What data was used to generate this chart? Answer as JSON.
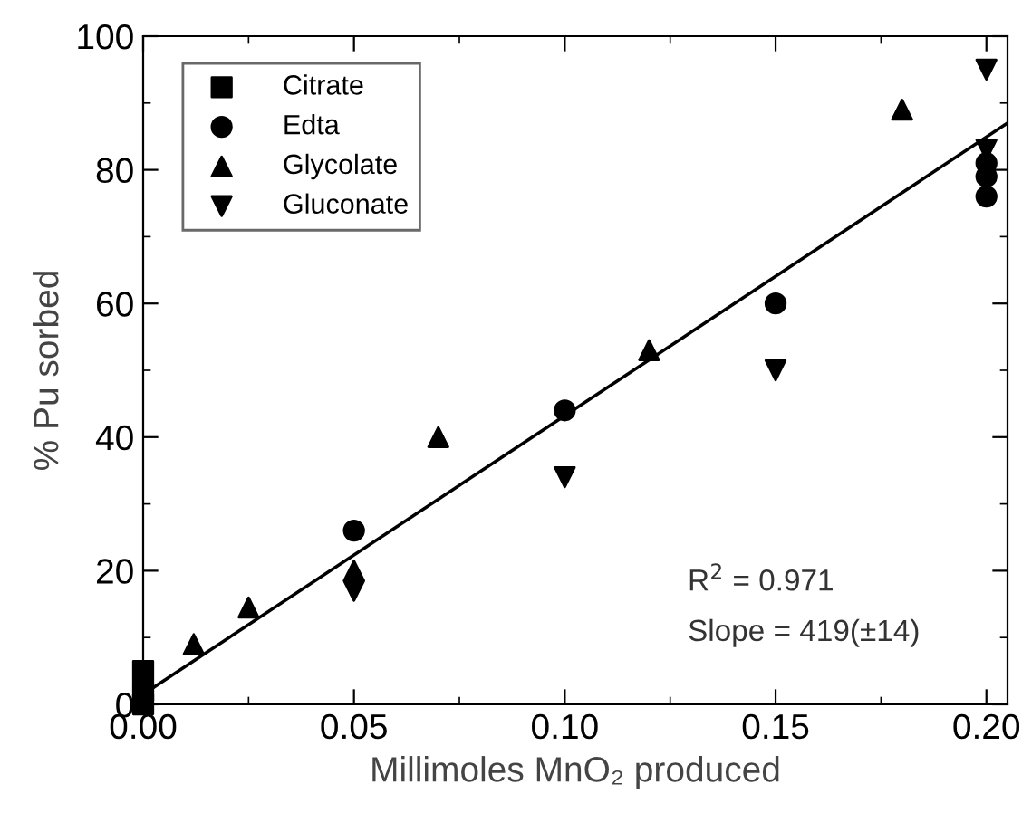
{
  "chart_data": {
    "type": "scatter",
    "xlabel": "Millimoles MnO₂ produced",
    "ylabel": "% Pu sorbed",
    "xlim": [
      0,
      0.205
    ],
    "ylim": [
      0,
      100
    ],
    "xticks": [
      {
        "value": 0,
        "label": "0.00"
      },
      {
        "value": 0.05,
        "label": "0.05"
      },
      {
        "value": 0.1,
        "label": "0.10"
      },
      {
        "value": 0.15,
        "label": "0.15"
      },
      {
        "value": 0.2,
        "label": "0.20"
      }
    ],
    "yticks": [
      0,
      20,
      40,
      60,
      80,
      100
    ],
    "grid": false,
    "legend": "top left",
    "annotations": [
      "R$^{2}$ = 0.971",
      "Slope = 419(±14)"
    ],
    "series": [
      {
        "name": "Citrate",
        "color": "#000000",
        "marker": "square",
        "x": [
          0,
          0,
          0
        ],
        "values": [
          5,
          2,
          0
        ]
      },
      {
        "name": "Edta",
        "color": "#000000",
        "marker": "circle",
        "x": [
          0.05,
          0.1,
          0.15,
          0.2,
          0.2,
          0.2
        ],
        "values": [
          26,
          44,
          60,
          76,
          79,
          81
        ]
      },
      {
        "name": "Glycolate",
        "color": "#000000",
        "marker": "triangle",
        "x": [
          0.012,
          0.025,
          0.05,
          0.07,
          0.12,
          0.18
        ],
        "values": [
          9,
          14.5,
          20,
          40,
          53,
          89
        ]
      },
      {
        "name": "Gluconate",
        "color": "#000000",
        "marker": "triangle_down",
        "x": [
          0.05,
          0.1,
          0.15,
          0.2,
          0.2
        ],
        "values": [
          17,
          34,
          50,
          95,
          83
        ]
      },
      {
        "type": "line",
        "color": "#000000",
        "marker": "none",
        "line_style": "solid",
        "x": [
          0,
          0.205
        ],
        "values": [
          1.5,
          87
        ]
      }
    ]
  }
}
